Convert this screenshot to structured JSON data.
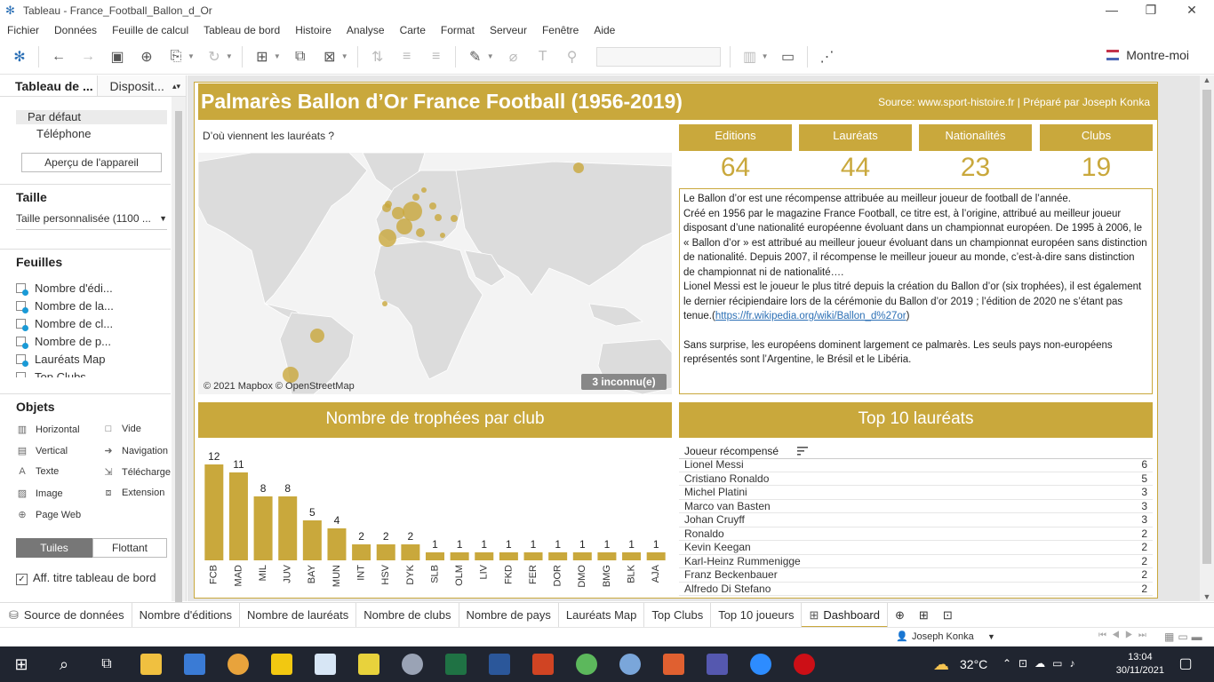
{
  "window": {
    "title": "Tableau - France_Football_Ballon_d_Or",
    "minimize": "—",
    "restore": "❐",
    "close": "✕"
  },
  "menu": [
    "Fichier",
    "Données",
    "Feuille de calcul",
    "Tableau de bord",
    "Histoire",
    "Analyse",
    "Carte",
    "Format",
    "Serveur",
    "Fenêtre",
    "Aide"
  ],
  "toolbar": {
    "show_me": "Montre-moi"
  },
  "left_pane": {
    "tab_dashboard": "Tableau de ...",
    "tab_layout": "Disposit...",
    "device_default": "Par défaut",
    "device_phone": "Téléphone",
    "device_preview": "Aperçu de l'appareil",
    "size_heading": "Taille",
    "size_value": "Taille personnalisée (1100 ...",
    "sheets_heading": "Feuilles",
    "sheets": [
      "Nombre d'édi...",
      "Nombre de la...",
      "Nombre de cl...",
      "Nombre de p...",
      "Lauréats Map",
      "Top Clubs"
    ],
    "objects_heading": "Objets",
    "objects": {
      "horizontal": "Horizontal",
      "blank": "Vide",
      "vertical": "Vertical",
      "navigation": "Navigation",
      "text": "Texte",
      "download": "Télécharge",
      "image": "Image",
      "extension": "Extension",
      "webpage": "Page Web"
    },
    "tiled": "Tuiles",
    "floating": "Flottant",
    "show_title": "Aff. titre tableau de bord"
  },
  "dashboard": {
    "title": "Palmarès Ballon d’Or France Football (1956-2019)",
    "source": "Source: www.sport-histoire.fr | Préparé par Joseph Konka",
    "map_title": "D’où viennent les lauréats ?",
    "map_credit": "© 2021 Mapbox © OpenStreetMap",
    "map_unknown": "3 inconnu(e)",
    "kpis": [
      {
        "label": "Editions",
        "value": "64"
      },
      {
        "label": "Lauréats",
        "value": "44"
      },
      {
        "label": "Nationalités",
        "value": "23"
      },
      {
        "label": "Clubs",
        "value": "19"
      }
    ],
    "description": {
      "p1": "Le Ballon d’or est une récompense attribuée au meilleur joueur de football de l’année.",
      "p2": "Créé en 1956 par le magazine France Football, ce titre est, à l’origine, attribué au meilleur joueur disposant d’une nationalité européenne évoluant dans un championnat européen. De 1995 à 2006, le « Ballon d’or » est attribué au meilleur joueur évoluant dans un championnat européen sans distinction de nationalité. Depuis 2007, il récompense le meilleur joueur au monde, c’est-à-dire sans distinction de championnat ni de nationalité….",
      "p3": "Lionel Messi est le joueur le plus titré depuis la création du Ballon d’or (six trophées), il est également le dernier récipiendaire lors de la cérémonie du Ballon d’or 2019 ; l’édition de 2020 ne s’étant pas tenue.(",
      "link": "https://fr.wikipedia.org/wiki/Ballon_d%27or",
      "p3_end": ")",
      "p4": "Sans surprise, les européens dominent largement ce palmarès. Les seuls pays non-européens représentés sont l’Argentine, le Brésil et le Libéria."
    },
    "clubs_title": "Nombre de trophées par club",
    "top10_title": "Top 10 lauréats",
    "top10_column": "Joueur récompensé",
    "top10": [
      {
        "name": "Lionel Messi",
        "value": "6"
      },
      {
        "name": "Cristiano Ronaldo",
        "value": "5"
      },
      {
        "name": "Michel Platini",
        "value": "3"
      },
      {
        "name": "Marco van Basten",
        "value": "3"
      },
      {
        "name": "Johan Cruyff",
        "value": "3"
      },
      {
        "name": "Ronaldo",
        "value": "2"
      },
      {
        "name": "Kevin Keegan",
        "value": "2"
      },
      {
        "name": "Karl-Heinz Rummenigge",
        "value": "2"
      },
      {
        "name": "Franz Beckenbauer",
        "value": "2"
      },
      {
        "name": "Alfredo Di Stefano",
        "value": "2"
      }
    ]
  },
  "chart_data": {
    "type": "bar",
    "title": "Nombre de trophées par club",
    "categories": [
      "FCB",
      "MAD",
      "MIL",
      "JUV",
      "BAY",
      "MUN",
      "INT",
      "HSV",
      "DYK",
      "SLB",
      "OLM",
      "LIV",
      "FKD",
      "FER",
      "DOR",
      "DMO",
      "BMG",
      "BLK",
      "AJA"
    ],
    "values": [
      12,
      11,
      8,
      8,
      5,
      4,
      2,
      2,
      2,
      1,
      1,
      1,
      1,
      1,
      1,
      1,
      1,
      1,
      1
    ],
    "ylim": [
      0,
      12
    ],
    "grid": false,
    "color": "#c9a83c"
  },
  "sheet_tabs": [
    "Source de données",
    "Nombre d'éditions",
    "Nombre de lauréats",
    "Nombre de clubs",
    "Nombre de pays",
    "Lauréats Map",
    "Top Clubs",
    "Top 10 joueurs",
    "Dashboard"
  ],
  "status": {
    "user": "Joseph Konka"
  },
  "taskbar": {
    "temperature": "32°C",
    "time": "13:04",
    "date": "30/11/2021"
  },
  "colors": {
    "accent": "#c9a83c",
    "link": "#2b6fb5",
    "taskbar": "#202530"
  }
}
